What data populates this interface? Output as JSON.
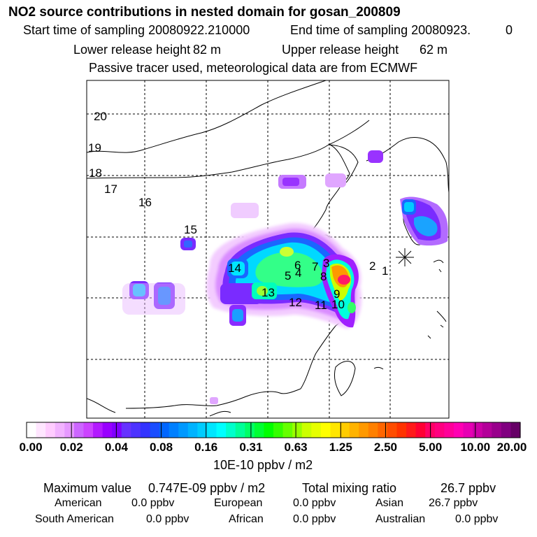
{
  "header": {
    "title": "NO2 source contributions in nested domain for gosan_200809",
    "start_label": "Start time of sampling 20080922.210000",
    "end_label": "End time of sampling 20080923.",
    "end_value": "0",
    "lower_label": "Lower release height",
    "lower_value": "82 m",
    "upper_label": "Upper release height",
    "upper_value": "62 m",
    "note": "Passive tracer used, meteorological data are from ECMWF"
  },
  "map": {
    "point_labels": [
      "1",
      "2",
      "3",
      "4",
      "5",
      "6",
      "7",
      "8",
      "9",
      "10",
      "11",
      "12",
      "13",
      "14",
      "15",
      "16",
      "17",
      "18",
      "19",
      "20"
    ],
    "receptor": "gosan"
  },
  "colorbar": {
    "tick_labels": [
      "0.00",
      "0.02",
      "0.04",
      "0.08",
      "0.16",
      "0.31",
      "0.63",
      "1.25",
      "2.50",
      "5.00",
      "10.00",
      "20.00"
    ],
    "units": "10E-10 ppbv / m2",
    "colors": [
      "#ffffff",
      "#ffe6ff",
      "#ffccff",
      "#f2b3ff",
      "#e699ff",
      "#cc66ff",
      "#cc44ff",
      "#b31aff",
      "#9900ff",
      "#8000ff",
      "#6633ff",
      "#4d33ff",
      "#3333ff",
      "#1a4dff",
      "#0066ff",
      "#0080ff",
      "#0099ff",
      "#00b3ff",
      "#00ccff",
      "#00e6ff",
      "#00ffff",
      "#00ffcc",
      "#00ff99",
      "#00ff66",
      "#00ff33",
      "#00ff00",
      "#33ff00",
      "#66ff00",
      "#99ff00",
      "#ccff00",
      "#e6ff00",
      "#ffff00",
      "#ffe600",
      "#ffcc00",
      "#ffb300",
      "#ff9900",
      "#ff8000",
      "#ff6600",
      "#ff4d00",
      "#ff3300",
      "#ff1a1a",
      "#ff0033",
      "#ff0066",
      "#ff0080",
      "#ff0099",
      "#ff00b3",
      "#e600b3",
      "#cc00a6",
      "#b30099",
      "#99008c",
      "#800080",
      "#660066"
    ]
  },
  "stats": {
    "max_label": "Maximum value",
    "max_value": "0.747E-09 ppbv / m2",
    "total_label": "Total mixing ratio",
    "total_value": "26.7 ppbv",
    "regions": [
      {
        "name": "American",
        "value": "0.0 ppbv"
      },
      {
        "name": "European",
        "value": "0.0 ppbv"
      },
      {
        "name": "Asian",
        "value": "26.7 ppbv"
      },
      {
        "name": "South American",
        "value": "0.0 ppbv"
      },
      {
        "name": "African",
        "value": "0.0 ppbv"
      },
      {
        "name": "Australian",
        "value": "0.0 ppbv"
      }
    ]
  }
}
